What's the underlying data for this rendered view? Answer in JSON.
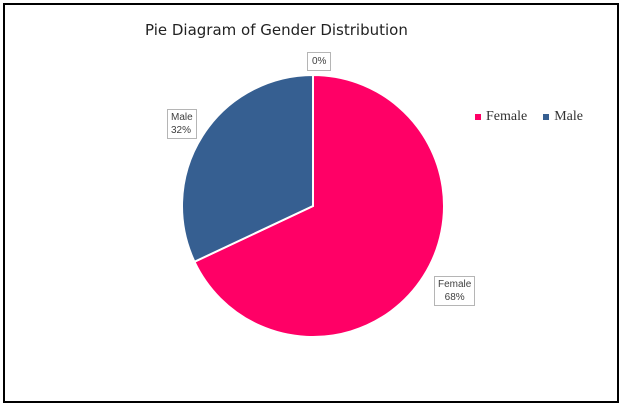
{
  "chart_data": {
    "type": "pie",
    "title": "Pie Diagram of Gender Distribution",
    "slices": [
      {
        "category": "Female",
        "value": 68,
        "value_label": "68%",
        "color": "#ff0066"
      },
      {
        "category": "Male",
        "value": 32,
        "value_label": "32%",
        "color": "#365f91"
      }
    ],
    "extra_label": "0%",
    "legend": {
      "placement": "right",
      "entries": [
        "Female",
        "Male"
      ]
    }
  }
}
